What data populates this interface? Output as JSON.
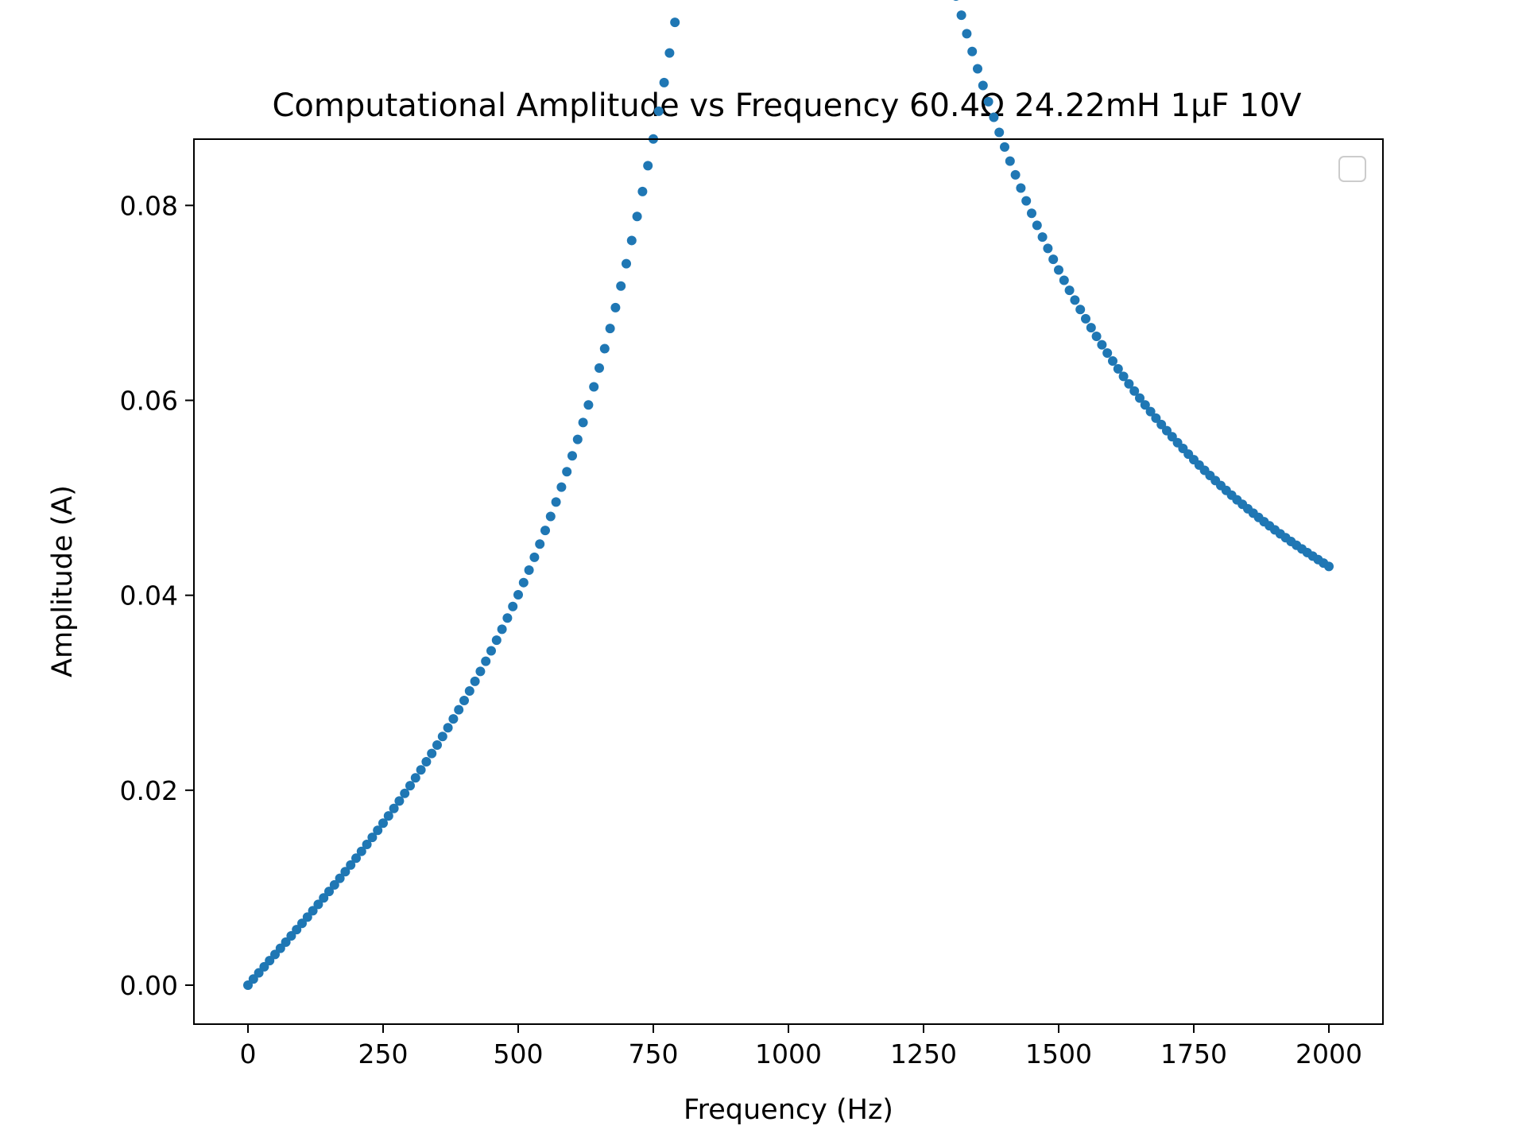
{
  "chart_data": {
    "type": "scatter",
    "title": "Computational Amplitude vs Frequency 60.4Ω 24.22mH 1μF 10V",
    "xlabel": "Frequency (Hz)",
    "ylabel": "Amplitude (A)",
    "xlim": [
      -100,
      2100
    ],
    "ylim": [
      -0.004,
      0.0868
    ],
    "xticks": [
      0,
      250,
      500,
      750,
      1000,
      1250,
      1500,
      1750,
      2000
    ],
    "xtick_labels": [
      "0",
      "250",
      "500",
      "750",
      "1000",
      "1250",
      "1500",
      "1750",
      "2000"
    ],
    "yticks": [
      0.0,
      0.02,
      0.04,
      0.06,
      0.08
    ],
    "ytick_labels": [
      "0.00",
      "0.02",
      "0.04",
      "0.06",
      "0.08"
    ],
    "grid": false,
    "legend": {
      "placement": "upper right",
      "entries": []
    },
    "series": [
      {
        "color": "#1f77b4",
        "marker": "circle",
        "circuit": {
          "R_ohm": 60.4,
          "L_H": 0.02422,
          "C_F": 1e-06,
          "V": 10
        },
        "x_start": 0,
        "x_end": 2000,
        "x_step": 10
      }
    ]
  },
  "colors": {
    "series": "#1f77b4",
    "axes": "#000000",
    "legend_border": "#cccccc",
    "background": "#ffffff"
  }
}
